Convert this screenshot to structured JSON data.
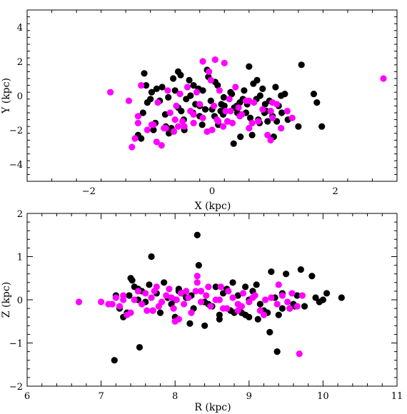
{
  "colors": {
    "series_black": "#000000",
    "series_magenta": "#ff00ff",
    "axes": "#000000",
    "background": "#ffffff"
  },
  "chart_data": [
    {
      "type": "scatter",
      "xlabel": "X (kpc)",
      "ylabel": "Y (kpc)",
      "xlim": [
        -3,
        3
      ],
      "ylim": [
        -5,
        5
      ],
      "x_ticks": [
        -2,
        0,
        2
      ],
      "y_ticks": [
        -4,
        -2,
        0,
        2,
        4
      ],
      "x_tick_labels": [
        "−2",
        "0",
        "2"
      ],
      "y_tick_labels": [
        "−4",
        "−2",
        "0",
        "2",
        "4"
      ],
      "grid": false,
      "legend": "none",
      "series": [
        {
          "color": "#000000",
          "x": [
            -1.12,
            -1.05,
            -0.98,
            -0.92,
            -0.85,
            -0.81,
            -0.76,
            -0.71,
            -0.66,
            -0.6,
            -0.55,
            -0.51,
            -0.46,
            -0.42,
            -0.37,
            -0.31,
            -0.27,
            -0.22,
            -0.16,
            -0.11,
            -0.06,
            -0.02,
            0.04,
            0.09,
            0.14,
            0.19,
            0.25,
            0.3,
            0.36,
            0.41,
            0.46,
            0.52,
            0.57,
            0.62,
            0.67,
            0.72,
            0.77,
            0.82,
            0.88,
            0.93,
            0.98,
            1.03,
            1.08,
            1.13,
            1.18,
            1.23,
            -1.2,
            -1.1,
            -1.0,
            -0.9,
            -0.75,
            -0.63,
            -0.5,
            -0.35,
            -0.2,
            -0.08,
            0.05,
            0.18,
            0.32,
            0.45,
            0.6,
            0.73,
            0.86,
            1.0,
            1.12,
            -1.15,
            -0.95,
            -0.7,
            -0.45,
            -0.2,
            0.1,
            0.35,
            0.65,
            0.9,
            1.05,
            0.55,
            0.2,
            0.78,
            1.45,
            1.65,
            1.7,
            1.78,
            1.4,
            -1.07,
            -0.55,
            0.0,
            0.5,
            0.95,
            -0.3,
            0.75,
            0.15,
            -0.85,
            -0.15,
            0.4,
            0.85
          ],
          "y": [
            -1.0,
            -0.4,
            0.2,
            -1.6,
            -0.3,
            0.5,
            -1.1,
            -0.1,
            -1.9,
            0.3,
            -0.7,
            1.2,
            -1.4,
            -0.2,
            0.9,
            -1.0,
            -0.5,
            0.4,
            -1.7,
            -0.8,
            1.1,
            -0.3,
            -1.2,
            0.6,
            -0.9,
            -0.1,
            -1.5,
            0.2,
            -0.7,
            -1.0,
            -2.4,
            0.3,
            -0.5,
            -1.3,
            0.7,
            -0.2,
            -1.6,
            0.4,
            -0.9,
            -0.3,
            -1.2,
            0.5,
            -0.6,
            -1.0,
            0.1,
            -1.4,
            -2.3,
            1.3,
            -0.2,
            0.4,
            -1.8,
            1.0,
            -0.9,
            0.0,
            -0.6,
            1.5,
            0.8,
            -1.1,
            0.1,
            -0.4,
            1.7,
            0.9,
            -0.5,
            -2.4,
            0.0,
            -2.5,
            -2.0,
            -2.2,
            -2.0,
            -1.2,
            -1.7,
            -2.8,
            -2.3,
            -1.5,
            -1.5,
            -1.0,
            -0.6,
            0.0,
            1.8,
            0.1,
            -0.4,
            -1.8,
            -1.8,
            0.6,
            1.4,
            -0.8,
            -0.2,
            -0.9,
            0.6,
            -1.4,
            -0.5,
            -0.3,
            0.3,
            -0.6,
            -1.0
          ]
        },
        {
          "color": "#ff00ff",
          "x": [
            -1.65,
            -1.35,
            -1.25,
            -1.2,
            -1.15,
            -1.05,
            -0.95,
            -0.88,
            -0.82,
            -0.78,
            -0.72,
            -0.68,
            -0.62,
            -0.58,
            -0.52,
            -0.48,
            -0.4,
            -0.35,
            -0.3,
            -0.25,
            -0.2,
            -0.15,
            -0.08,
            -0.02,
            0.03,
            0.08,
            0.12,
            0.18,
            0.22,
            0.28,
            0.33,
            0.38,
            0.43,
            0.48,
            0.55,
            0.6,
            0.68,
            0.75,
            0.82,
            0.9,
            0.98,
            1.05,
            1.12,
            -0.9,
            -0.6,
            -0.3,
            0.0,
            0.3,
            0.6,
            0.95,
            -1.3,
            -0.55,
            -0.05,
            0.45,
            0.95,
            1.22,
            -0.15,
            0.05,
            0.2,
            2.78,
            -1.2,
            -0.75,
            -0.45,
            0.25,
            0.65,
            0.98,
            1.3,
            -0.98,
            0.1
          ],
          "y": [
            0.2,
            -0.3,
            -2.5,
            -1.2,
            0.6,
            -2.0,
            -1.7,
            -0.4,
            -2.9,
            -1.9,
            0.3,
            -1.0,
            -2.1,
            -0.6,
            0.1,
            -1.5,
            0.5,
            -0.9,
            -1.6,
            0.2,
            -0.5,
            -1.3,
            -2.1,
            0.9,
            -0.6,
            -1.4,
            0.3,
            -1.8,
            -0.9,
            -0.2,
            -1.6,
            0.5,
            -0.7,
            -1.1,
            -0.3,
            -1.9,
            -0.4,
            -1.5,
            -0.8,
            -2.3,
            -1.3,
            -0.5,
            -1.9,
            -2.7,
            -1.4,
            -1.1,
            -2.0,
            -0.9,
            -0.3,
            -0.9,
            -3.0,
            -1.8,
            1.4,
            -1.2,
            -2.6,
            -0.9,
            2.0,
            2.1,
            1.9,
            1.0,
            -1.6,
            -1.9,
            -1.8,
            -1.5,
            -1.6,
            -0.4,
            -1.3,
            -1.7,
            -1.5
          ]
        }
      ]
    },
    {
      "type": "scatter",
      "xlabel": "R (kpc)",
      "ylabel": "Z (kpc)",
      "xlim": [
        6,
        11
      ],
      "ylim": [
        -2,
        2
      ],
      "x_ticks": [
        6,
        7,
        8,
        9,
        10,
        11
      ],
      "y_ticks": [
        -2,
        -1,
        0,
        1,
        2
      ],
      "x_tick_labels": [
        "6",
        "7",
        "8",
        "9",
        "10",
        "11"
      ],
      "y_tick_labels": [
        "−2",
        "−1",
        "0",
        "1",
        "2"
      ],
      "grid": false,
      "legend": "none",
      "series": [
        {
          "color": "#000000",
          "x": [
            7.2,
            7.5,
            7.3,
            7.4,
            7.45,
            7.55,
            7.65,
            7.75,
            7.85,
            7.95,
            8.05,
            8.15,
            8.25,
            8.35,
            8.45,
            8.55,
            8.65,
            8.75,
            8.85,
            8.95,
            9.05,
            9.15,
            9.25,
            9.35,
            9.45,
            9.55,
            9.65,
            9.75,
            9.9,
            10.05,
            10.25,
            7.35,
            7.6,
            7.8,
            8.0,
            8.2,
            8.4,
            8.6,
            8.8,
            9.0,
            9.2,
            9.4,
            8.3,
            8.32,
            7.68,
            9.3,
            9.5,
            9.7,
            9.28,
            9.38,
            7.52,
            7.18,
            8.0,
            8.1,
            8.4,
            8.7,
            9.0,
            9.6,
            7.9,
            8.5,
            9.1,
            9.85,
            10.0,
            9.95,
            7.42,
            7.38,
            7.25,
            7.7,
            8.05,
            8.9,
            9.12,
            9.45,
            8.22,
            8.78,
            9.62,
            7.5,
            8.6,
            8.95
          ],
          "y": [
            0.1,
            0.25,
            -0.4,
            0.5,
            0.3,
            0.2,
            0.35,
            0.15,
            0.4,
            -0.1,
            0.25,
            0.05,
            -0.2,
            0.2,
            -0.1,
            0.3,
            0.15,
            -0.25,
            0.1,
            -0.35,
            0.2,
            -0.1,
            -0.3,
            0.05,
            0.15,
            -0.2,
            0.1,
            -0.15,
            0.05,
            0.15,
            0.05,
            -0.3,
            -0.05,
            -0.3,
            -0.4,
            -0.55,
            -0.6,
            -0.45,
            -0.3,
            -0.4,
            -0.25,
            -0.35,
            1.5,
            0.8,
            1.0,
            0.65,
            0.6,
            0.7,
            -0.75,
            -1.2,
            -1.1,
            -1.4,
            0.0,
            0.15,
            -0.05,
            0.25,
            0.0,
            -0.1,
            0.05,
            -0.15,
            0.35,
            0.55,
            0.0,
            -0.05,
            0.45,
            0.1,
            -0.2,
            -0.25,
            0.2,
            -0.3,
            -0.45,
            -0.2,
            0.1,
            0.4,
            -0.15,
            0.0,
            -0.35,
            0.3
          ],
          "r_note": ""
        },
        {
          "color": "#ff00ff",
          "x": [
            6.7,
            7.0,
            7.1,
            7.2,
            7.25,
            7.3,
            7.35,
            7.45,
            7.5,
            7.55,
            7.6,
            7.62,
            7.68,
            7.72,
            7.78,
            7.82,
            7.88,
            7.92,
            7.98,
            8.02,
            8.08,
            8.12,
            8.18,
            8.22,
            8.28,
            8.35,
            8.42,
            8.48,
            8.55,
            8.62,
            8.7,
            8.78,
            8.85,
            8.92,
            9.0,
            9.08,
            9.15,
            9.22,
            9.3,
            9.38,
            9.45,
            9.52,
            9.58,
            9.65,
            9.72,
            7.4,
            7.7,
            8.0,
            8.3,
            8.6,
            8.9,
            9.2,
            9.55,
            7.15,
            8.05,
            7.95,
            8.3,
            8.35,
            8.72,
            9.4,
            9.68,
            7.75,
            8.45,
            8.85,
            9.05,
            7.3,
            8.15,
            8.65
          ],
          "y": [
            -0.05,
            -0.05,
            -0.1,
            0.05,
            -0.15,
            0.1,
            -0.35,
            0.0,
            0.2,
            -0.1,
            0.15,
            -0.25,
            0.05,
            0.2,
            -0.15,
            -0.05,
            0.1,
            0.25,
            -0.2,
            0.0,
            0.15,
            -0.1,
            0.05,
            -0.3,
            0.2,
            -0.05,
            0.1,
            -0.15,
            0.0,
            0.3,
            -0.2,
            0.05,
            -0.1,
            0.15,
            -0.05,
            0.1,
            -0.25,
            0.0,
            0.05,
            -0.1,
            0.1,
            -0.05,
            0.15,
            -0.15,
            0.1,
            -0.3,
            -0.25,
            -0.5,
            0.55,
            0.0,
            -0.15,
            -0.35,
            -0.2,
            -0.1,
            -0.45,
            0.05,
            0.4,
            0.2,
            0.2,
            0.35,
            -1.25,
            0.3,
            0.3,
            -0.25,
            0.05,
            0.0,
            0.2,
            -0.2
          ]
        }
      ]
    }
  ]
}
